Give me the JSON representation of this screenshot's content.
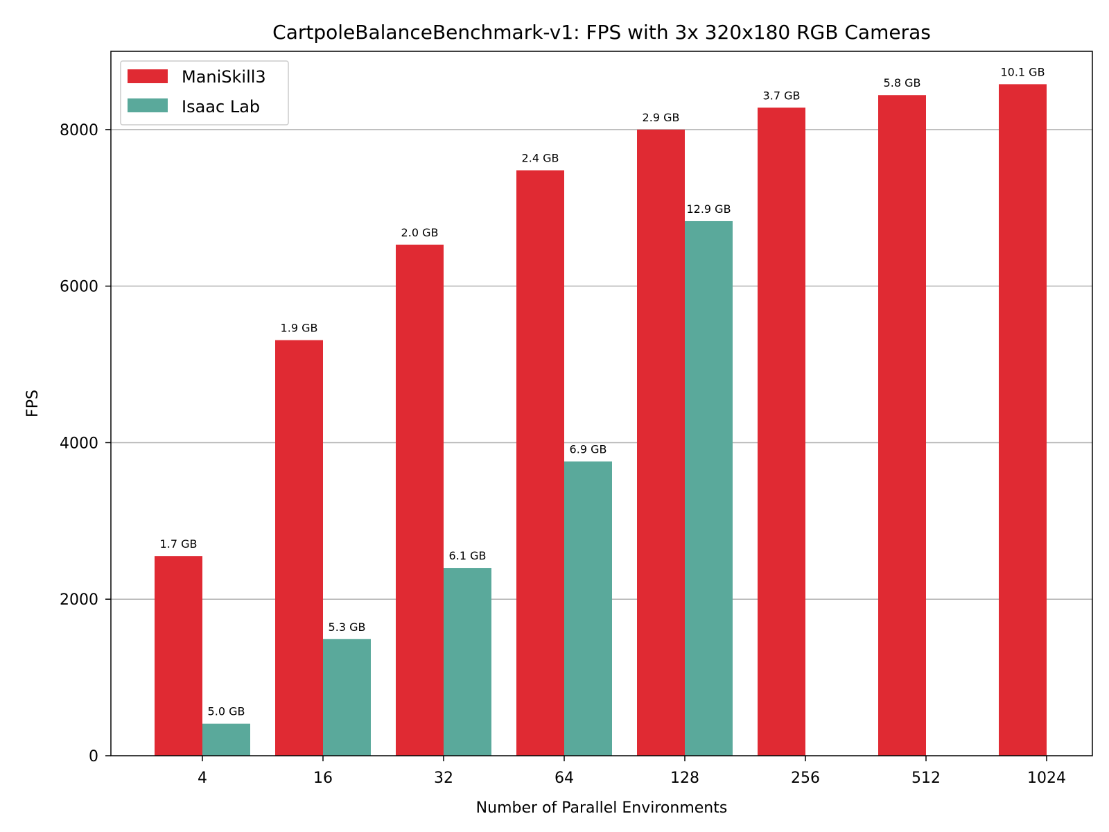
{
  "chart_data": {
    "type": "bar",
    "title": "CartpoleBalanceBenchmark-v1: FPS with 3x 320x180 RGB Cameras",
    "xlabel": "Number of Parallel Environments",
    "ylabel": "FPS",
    "categories": [
      "4",
      "16",
      "32",
      "64",
      "128",
      "256",
      "512",
      "1024"
    ],
    "ylim": [
      0,
      9000
    ],
    "yticks": [
      0,
      2000,
      4000,
      6000,
      8000
    ],
    "grid": "horizontal",
    "legend_position": "top-left",
    "series": [
      {
        "name": "ManiSkill3",
        "color": "#e02a33",
        "values": [
          2550,
          5310,
          6530,
          7480,
          8000,
          8280,
          8440,
          8580
        ],
        "labels": [
          "1.7 GB",
          "1.9 GB",
          "2.0 GB",
          "2.4 GB",
          "2.9 GB",
          "3.7 GB",
          "5.8 GB",
          "10.1 GB"
        ]
      },
      {
        "name": "Isaac Lab",
        "color": "#5aa99b",
        "values": [
          410,
          1490,
          2400,
          3760,
          6830,
          null,
          null,
          null
        ],
        "labels": [
          "5.0 GB",
          "5.3 GB",
          "6.1 GB",
          "6.9 GB",
          "12.9 GB",
          null,
          null,
          null
        ]
      }
    ]
  }
}
